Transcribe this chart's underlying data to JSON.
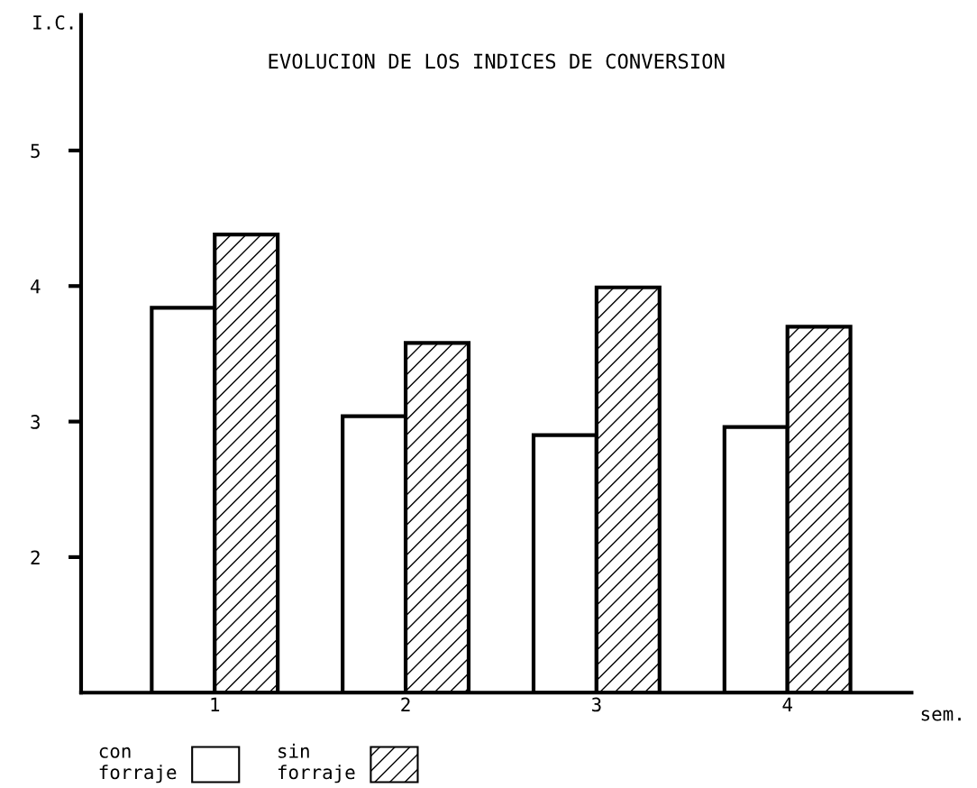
{
  "chart_data": {
    "type": "bar",
    "title": "EVOLUCION DE LOS INDICES DE CONVERSION",
    "xlabel": "sem.",
    "ylabel": "I.C.",
    "categories": [
      "1",
      "2",
      "3",
      "4"
    ],
    "series": [
      {
        "name": "con\nforraje",
        "color": "#ffffff",
        "values": [
          3.84,
          3.04,
          2.9,
          2.96
        ]
      },
      {
        "name": "sin\nforraje",
        "color": "#000000",
        "values": [
          4.38,
          3.58,
          3.99,
          3.7
        ]
      }
    ],
    "ylim": [
      1,
      6
    ],
    "yticks": [
      2,
      3,
      4,
      5
    ],
    "grid": false,
    "legend": "bottom left"
  }
}
